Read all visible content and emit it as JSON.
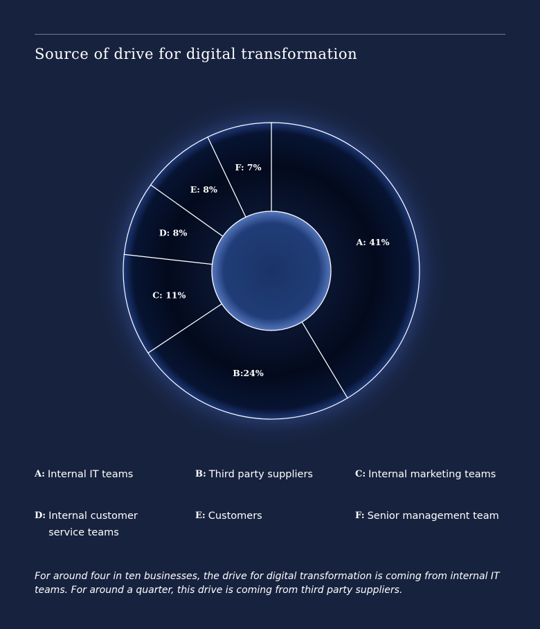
{
  "title": "Source of drive for digital transformation",
  "chart_data": {
    "type": "pie",
    "title": "Source of drive for digital transformation",
    "slices": [
      {
        "key": "A",
        "label": "A: 41%",
        "value": 41,
        "name": "Internal IT teams"
      },
      {
        "key": "B",
        "label": "B:24%",
        "value": 24,
        "name": "Third party suppliers"
      },
      {
        "key": "C",
        "label": "C: 11%",
        "value": 11,
        "name": "Internal marketing teams"
      },
      {
        "key": "D",
        "label": "D: 8%",
        "value": 8,
        "name": "Internal customer service teams"
      },
      {
        "key": "E",
        "label": "E: 8%",
        "value": 8,
        "name": "Customers"
      },
      {
        "key": "F",
        "label": "F: 7%",
        "value": 7,
        "name": "Senior management team"
      }
    ],
    "colors": {
      "background": "#17223e",
      "ring": "#020817",
      "glow": "#5a7fd6",
      "stroke": "#ffffff"
    }
  },
  "legend": [
    {
      "key": "A:",
      "desc": "Internal IT teams"
    },
    {
      "key": "B:",
      "desc": "Third party suppliers"
    },
    {
      "key": "C:",
      "desc": "Internal marketing teams"
    },
    {
      "key": "D:",
      "desc": "Internal customer service teams"
    },
    {
      "key": "E:",
      "desc": "Customers"
    },
    {
      "key": "F:",
      "desc": "Senior management team"
    }
  ],
  "caption": "For around four in ten businesses, the drive for digital transformation is coming from internal IT teams. For around a quarter, this drive is coming from third party suppliers."
}
